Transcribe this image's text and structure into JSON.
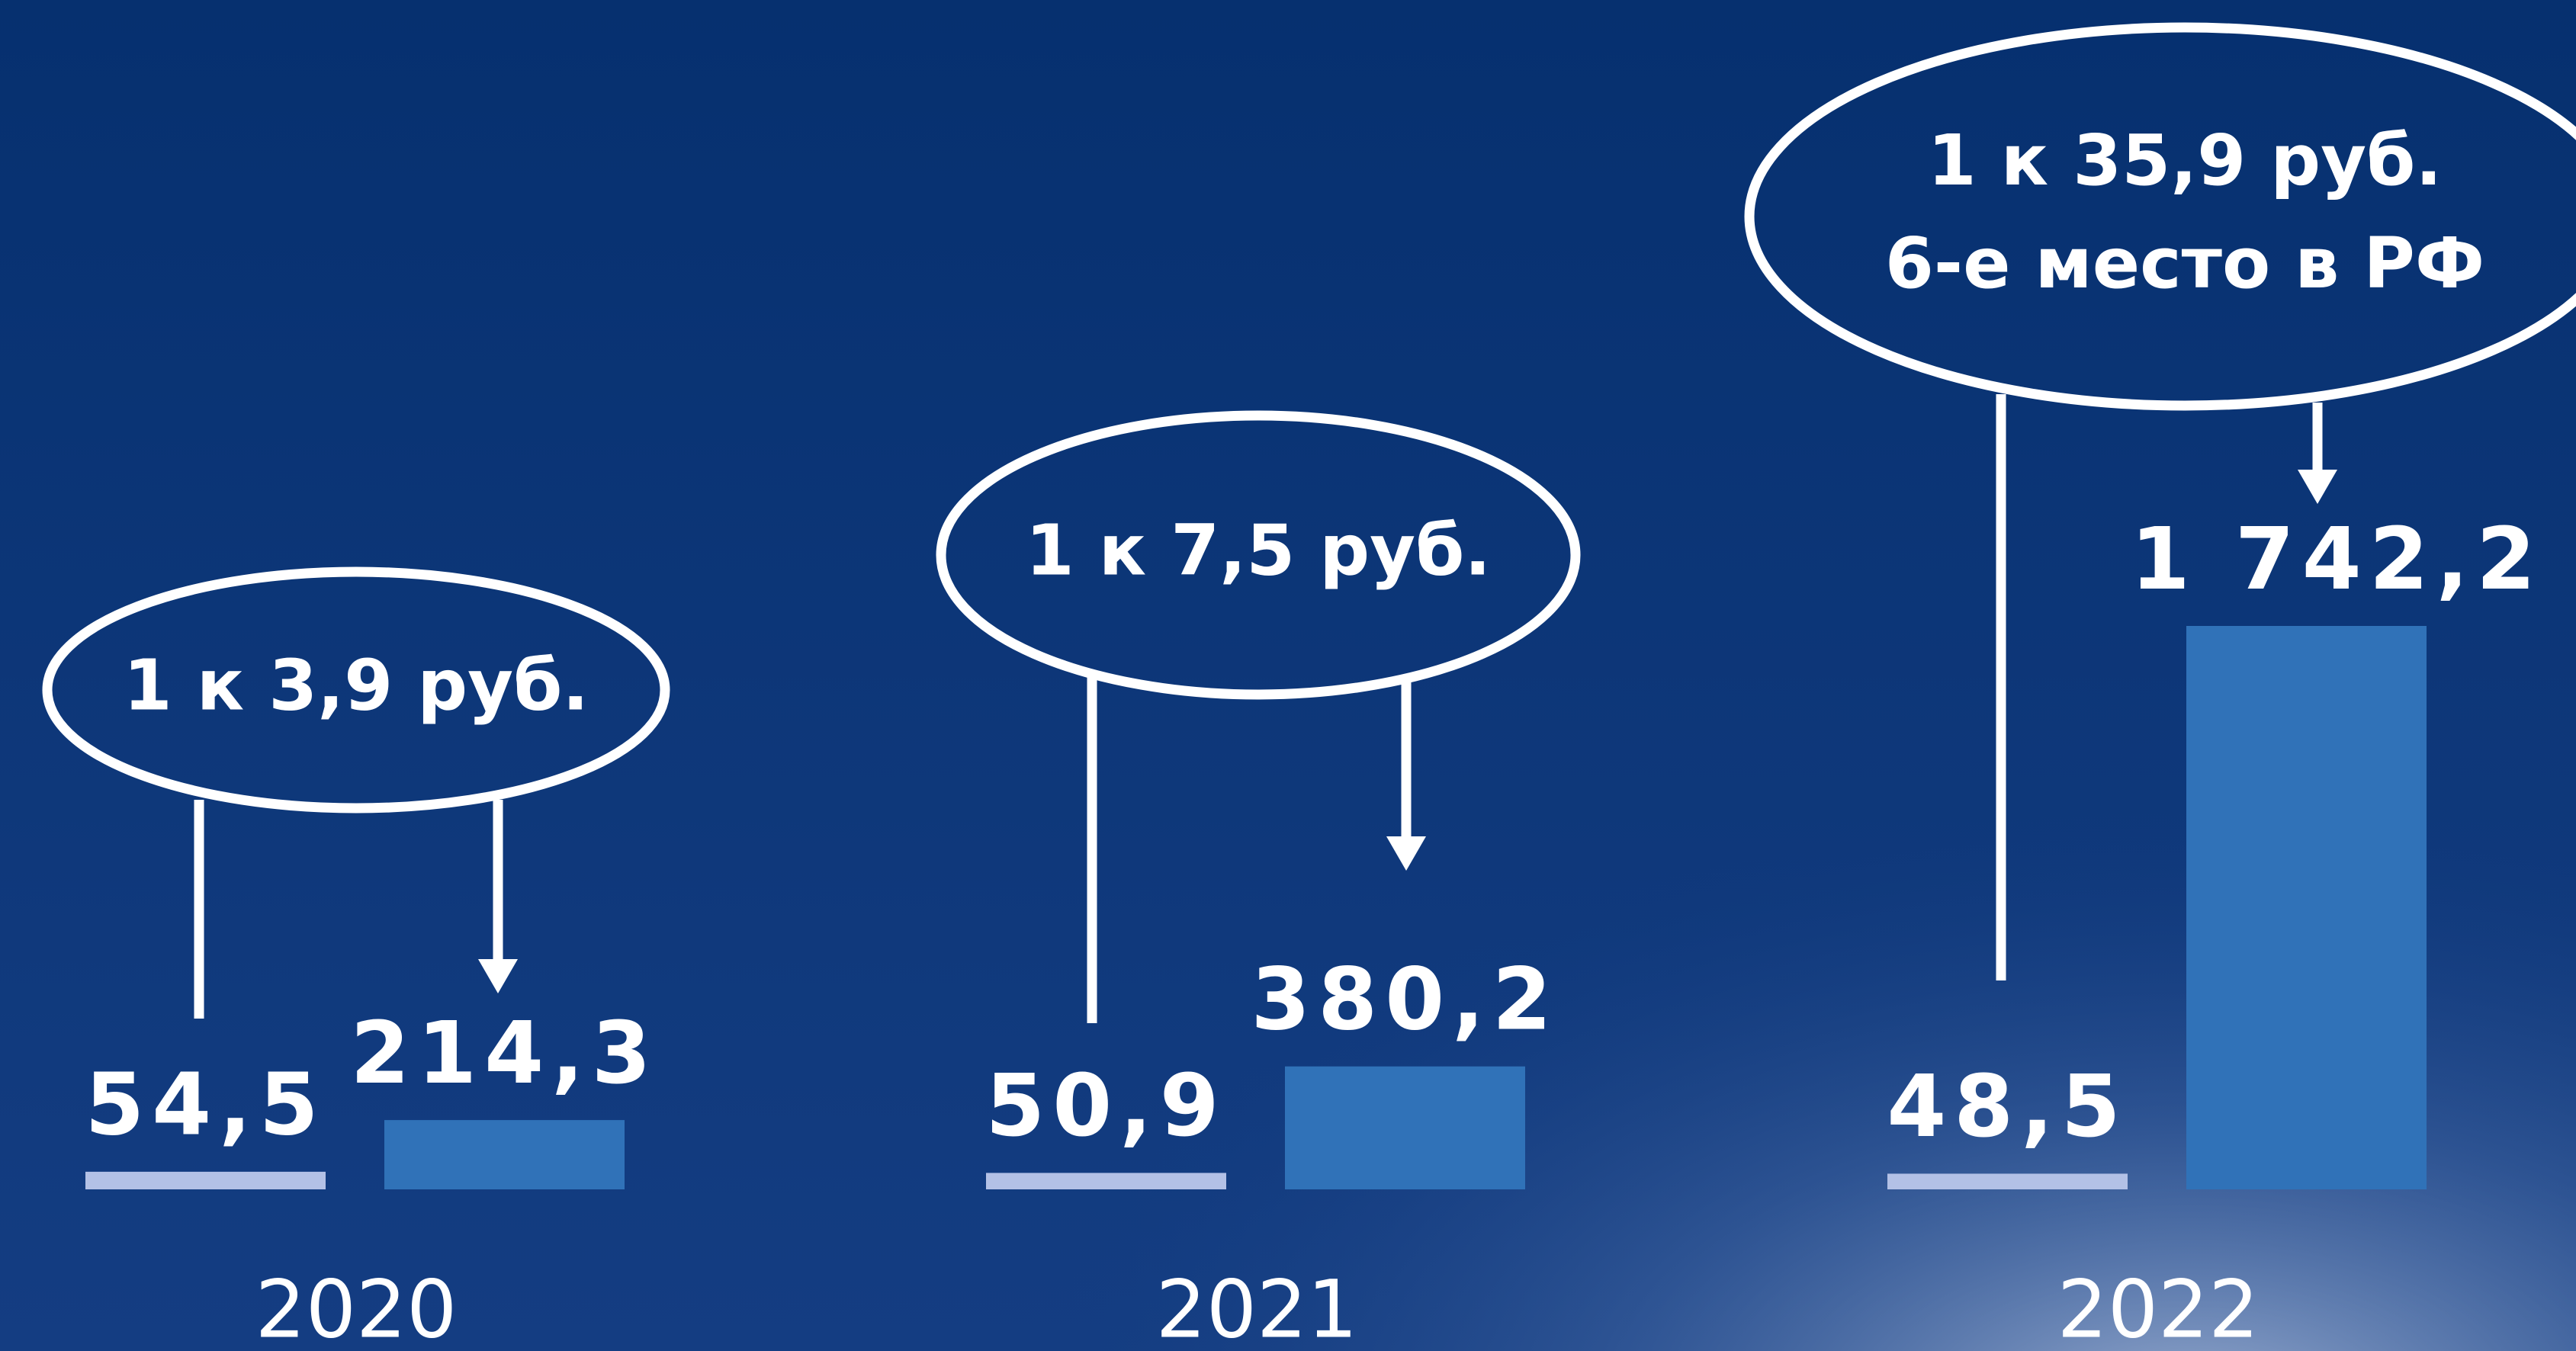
{
  "chart_data": {
    "type": "bar",
    "categories": [
      "2020",
      "2021",
      "2022"
    ],
    "series": [
      {
        "color": "#b3c1e6",
        "values": [
          54.5,
          50.9,
          48.5
        ],
        "value_labels": [
          "54,5",
          "50,9",
          "48,5"
        ]
      },
      {
        "color": "#3072b8",
        "values": [
          214.3,
          380.2,
          1742.2
        ],
        "value_labels": [
          "214,3",
          "380,2",
          "1 742,2"
        ]
      }
    ],
    "annotations": [
      [
        "1 к 3,9 руб."
      ],
      [
        "1 к 7,5 руб."
      ],
      [
        "1 к 35,9 руб.",
        "6-е место в РФ"
      ]
    ]
  }
}
